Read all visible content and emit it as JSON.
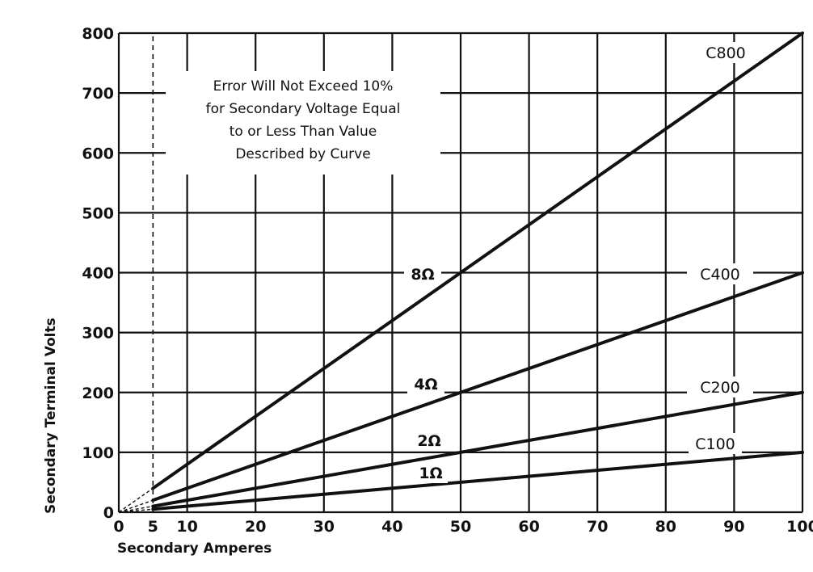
{
  "chart_data": {
    "type": "line",
    "title": "",
    "xlabel": "Secondary Amperes",
    "ylabel": "Secondary Terminal Volts",
    "xlim": [
      0,
      100
    ],
    "ylim": [
      0,
      800
    ],
    "xticks": [
      0,
      5,
      10,
      20,
      30,
      40,
      50,
      60,
      70,
      80,
      90,
      100
    ],
    "yticks": [
      0,
      100,
      200,
      300,
      400,
      500,
      600,
      700,
      800
    ],
    "grid": true,
    "x_gridlines": [
      10,
      20,
      30,
      40,
      50,
      60,
      70,
      80,
      90,
      100
    ],
    "y_gridlines": [
      100,
      200,
      300,
      400,
      500,
      600,
      700,
      800
    ],
    "limit_line": {
      "x": 5
    },
    "annotation": [
      "Error Will Not Exceed 10%",
      "for Secondary Voltage Equal",
      "to or Less Than Value",
      "Described by Curve"
    ],
    "series": [
      {
        "name": "C800",
        "burden": "8Ω",
        "x": [
          0,
          100
        ],
        "y": [
          0,
          800
        ]
      },
      {
        "name": "C400",
        "burden": "4Ω",
        "x": [
          0,
          100
        ],
        "y": [
          0,
          400
        ]
      },
      {
        "name": "C200",
        "burden": "2Ω",
        "x": [
          0,
          100
        ],
        "y": [
          0,
          200
        ]
      },
      {
        "name": "C100",
        "burden": "1Ω",
        "x": [
          0,
          100
        ],
        "y": [
          0,
          100
        ]
      }
    ]
  }
}
